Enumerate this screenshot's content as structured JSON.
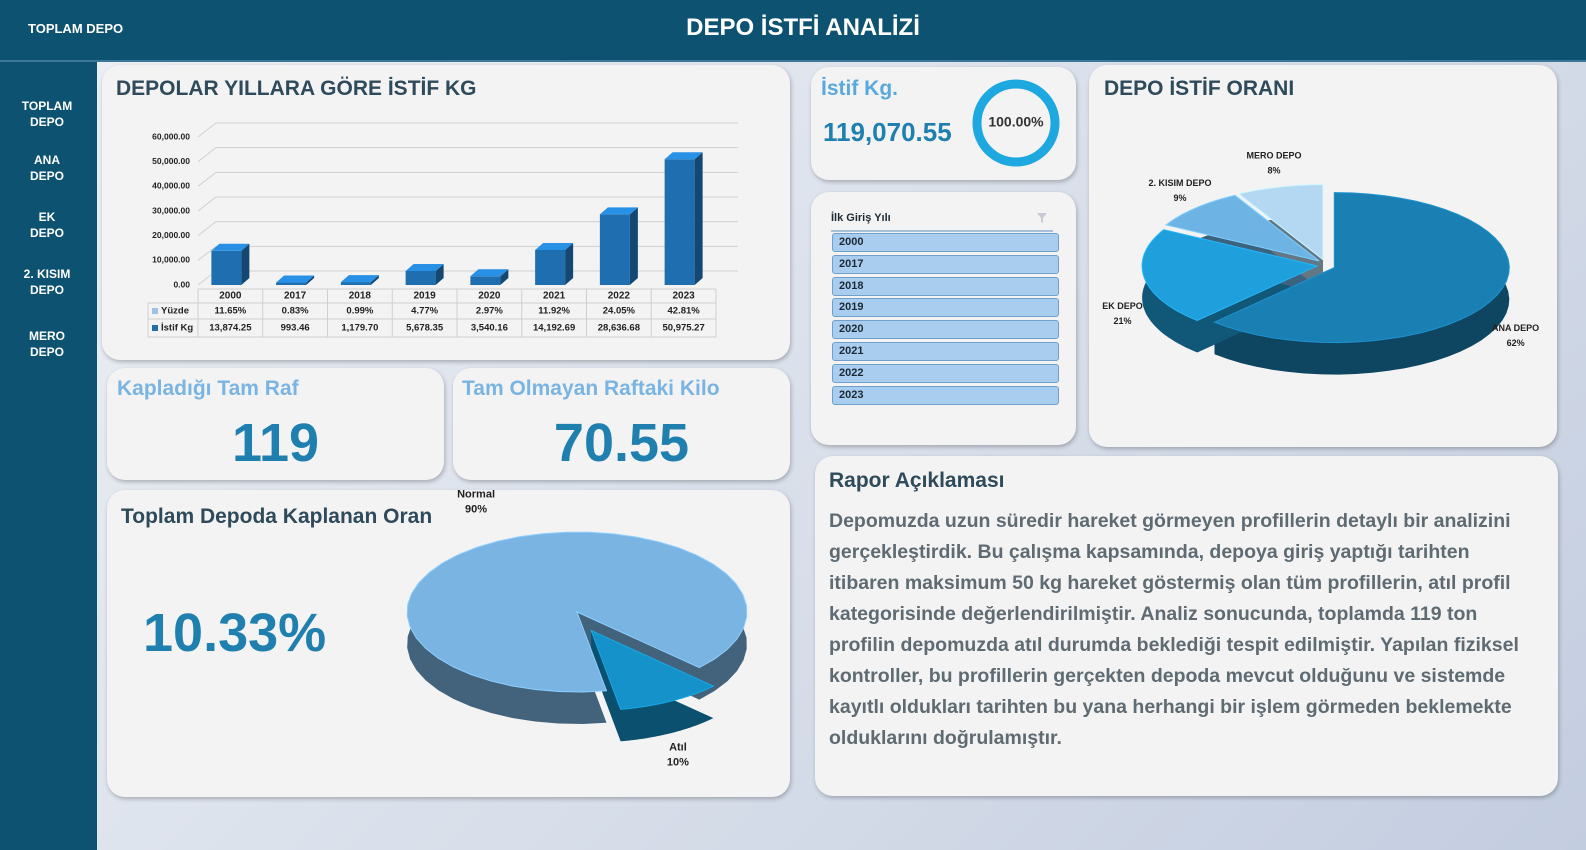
{
  "header": {
    "left": "TOPLAM DEPO",
    "title": "DEPO İSTFİ ANALİZİ"
  },
  "sidebar": [
    "TOPLAM DEPO",
    "ANA DEPO",
    "EK DEPO",
    "2. KISIM DEPO",
    "MERO DEPO"
  ],
  "cards": {
    "istif": {
      "title": "İstif Kg.",
      "value": "119,070.55"
    },
    "tam_raf": {
      "title": "Kapladığı Tam Raf",
      "value": "119"
    },
    "tam_olmayan": {
      "title": "Tam Olmayan Raftaki Kilo",
      "value": "70.55"
    },
    "oran": {
      "value": "10.33%"
    }
  },
  "slicer": {
    "title": "İlk Giriş Yılı",
    "items": [
      "2000",
      "2017",
      "2018",
      "2019",
      "2020",
      "2021",
      "2022",
      "2023"
    ]
  },
  "report": {
    "title": "Rapor Açıklaması",
    "text": "Depomuzda uzun süredir hareket görmeyen profillerin detaylı bir analizini gerçekleştirdik. Bu çalışma kapsamında, depoya giriş yaptığı tarihten itibaren maksimum 50 kg hareket göstermiş olan tüm profillerin, atıl profil kategorisinde değerlendirilmiştir. Analiz sonucunda, toplamda 119 ton profilin depomuzda atıl durumda beklediği tespit edilmiştir. Yapılan fiziksel kontroller, bu profillerin gerçekten depoda mevcut olduğunu ve sistemde kayıtlı oldukları tarihten bu yana herhangi bir işlem görmeden beklemekte olduklarını doğrulamıştır."
  },
  "chart_data": [
    {
      "type": "bar",
      "title": "DEPOLAR YILLARA GÖRE İSTİF KG",
      "categories": [
        "2000",
        "2017",
        "2018",
        "2019",
        "2020",
        "2021",
        "2022",
        "2023"
      ],
      "series": [
        {
          "name": "Yüzde",
          "color": "#9dc3e6",
          "values": [
            11.65,
            0.83,
            0.99,
            4.77,
            2.97,
            11.92,
            24.05,
            42.81
          ],
          "value_labels": [
            "11.65%",
            "0.83%",
            "0.99%",
            "4.77%",
            "2.97%",
            "11.92%",
            "24.05%",
            "42.81%"
          ]
        },
        {
          "name": "İstif Kg",
          "color": "#1f6fb0",
          "values": [
            13874.25,
            993.46,
            1179.7,
            5678.35,
            3540.16,
            14192.69,
            28636.68,
            50975.27
          ],
          "value_labels": [
            "13,874.25",
            "993.46",
            "1,179.70",
            "5,678.35",
            "3,540.16",
            "14,192.69",
            "28,636.68",
            "50,975.27"
          ]
        }
      ],
      "ylim": [
        0,
        60000
      ],
      "yticks": [
        {
          "value": 0,
          "label": "0.00"
        },
        {
          "value": 10000,
          "label": "10,000.00"
        },
        {
          "value": 20000,
          "label": "20,000.00"
        },
        {
          "value": 30000,
          "label": "30,000.00"
        },
        {
          "value": 40000,
          "label": "40,000.00"
        },
        {
          "value": 50000,
          "label": "50,000.00"
        },
        {
          "value": 60000,
          "label": "60,000.00"
        }
      ],
      "grid": true
    },
    {
      "type": "pie",
      "title": "DEPO İSTİF ORANI",
      "categories": [
        "ANA DEPO",
        "EK DEPO",
        "2. KISIM DEPO",
        "MERO DEPO"
      ],
      "values": [
        62,
        21,
        9,
        8
      ],
      "value_labels": [
        "62%",
        "21%",
        "9%",
        "8%"
      ],
      "colors": [
        "#1a7fb3",
        "#1f9fdb",
        "#6db4e5",
        "#b4d8f2"
      ]
    },
    {
      "type": "pie",
      "title": "Toplam Depoda Kaplanan Oran",
      "categories": [
        "Normal",
        "Atıl"
      ],
      "values": [
        90,
        10
      ],
      "value_labels": [
        "90%",
        "10%"
      ],
      "colors": [
        "#7ab4e2",
        "#1592c9"
      ]
    },
    {
      "type": "ring",
      "values": [
        100
      ],
      "value_labels": [
        "100.00%"
      ],
      "color": "#1ea8e0"
    }
  ]
}
